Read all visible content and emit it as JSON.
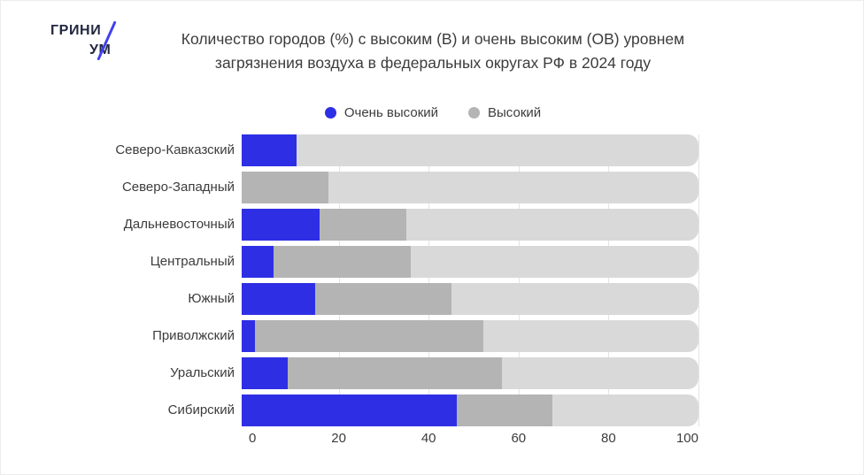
{
  "header": {
    "logo_line1": "ГРИНИ",
    "logo_line2": "УМ",
    "title_line1": "Количество городов (%) с высоким (В) и очень высоким (ОВ) уровнем",
    "title_line2": "загрязнения воздуха в федеральных округах РФ в 2024 году"
  },
  "colors": {
    "very_high": "#2e2fe4",
    "high": "#b4b4b4",
    "track": "#d9d9d9",
    "gridline": "#e4e4e4",
    "text": "#3c3c3c",
    "logo_navy": "#232840",
    "logo_slash": "#4141f0"
  },
  "chart_data": {
    "type": "bar",
    "orientation": "horizontal",
    "stacked": true,
    "title": "Количество городов (%) с высоким (В) и очень высоким (ОВ) уровнем загрязнения воздуха в федеральных округах РФ в 2024 году",
    "categories": [
      "Северо-Кавказский",
      "Северо-Западный",
      "Дальневосточный",
      "Центральный",
      "Южный",
      "Приволжский",
      "Уральский",
      "Сибирский"
    ],
    "series": [
      {
        "name": "Очень высокий",
        "color": "#2e2fe4",
        "values": [
          12,
          0,
          17,
          7,
          16,
          3,
          10,
          47
        ]
      },
      {
        "name": "Высокий",
        "color": "#b4b4b4",
        "values": [
          0,
          19,
          19,
          30,
          30,
          50,
          47,
          21
        ]
      }
    ],
    "xlabel": "",
    "ylabel": "",
    "xlim": [
      0,
      100
    ],
    "xticks": [
      0,
      20,
      40,
      60,
      80,
      100
    ],
    "units": "%",
    "legend_position": "top-center",
    "grid": true,
    "track_color": "#d9d9d9"
  }
}
